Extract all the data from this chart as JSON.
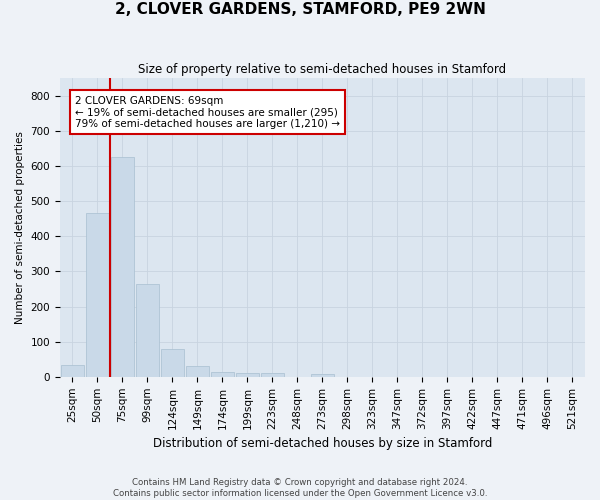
{
  "title": "2, CLOVER GARDENS, STAMFORD, PE9 2WN",
  "subtitle": "Size of property relative to semi-detached houses in Stamford",
  "xlabel": "Distribution of semi-detached houses by size in Stamford",
  "ylabel": "Number of semi-detached properties",
  "footer_line1": "Contains HM Land Registry data © Crown copyright and database right 2024.",
  "footer_line2": "Contains public sector information licensed under the Open Government Licence v3.0.",
  "bar_labels": [
    "25sqm",
    "50sqm",
    "75sqm",
    "99sqm",
    "124sqm",
    "149sqm",
    "174sqm",
    "199sqm",
    "223sqm",
    "248sqm",
    "273sqm",
    "298sqm",
    "323sqm",
    "347sqm",
    "372sqm",
    "397sqm",
    "422sqm",
    "447sqm",
    "471sqm",
    "496sqm",
    "521sqm"
  ],
  "bar_values": [
    35,
    465,
    625,
    265,
    80,
    30,
    13,
    12,
    10,
    0,
    8,
    0,
    0,
    0,
    0,
    0,
    0,
    0,
    0,
    0,
    0
  ],
  "bar_color": "#c9d9e8",
  "bar_edge_color": "#a8bfd0",
  "ylim": [
    0,
    850
  ],
  "yticks": [
    0,
    100,
    200,
    300,
    400,
    500,
    600,
    700,
    800
  ],
  "property_label": "2 CLOVER GARDENS: 69sqm",
  "pct_smaller": 19,
  "count_smaller": 295,
  "pct_larger": 79,
  "count_larger": 1210,
  "vline_x_index": 1.5,
  "annotation_box_color": "#ffffff",
  "annotation_border_color": "#cc0000",
  "grid_color": "#c8d4e0",
  "bg_color": "#dce6f0",
  "fig_bg_color": "#eef2f7",
  "title_fontsize": 11,
  "subtitle_fontsize": 8.5,
  "xlabel_fontsize": 8.5,
  "ylabel_fontsize": 7.5,
  "tick_fontsize": 7.5,
  "ann_fontsize": 7.5,
  "footer_fontsize": 6.2
}
